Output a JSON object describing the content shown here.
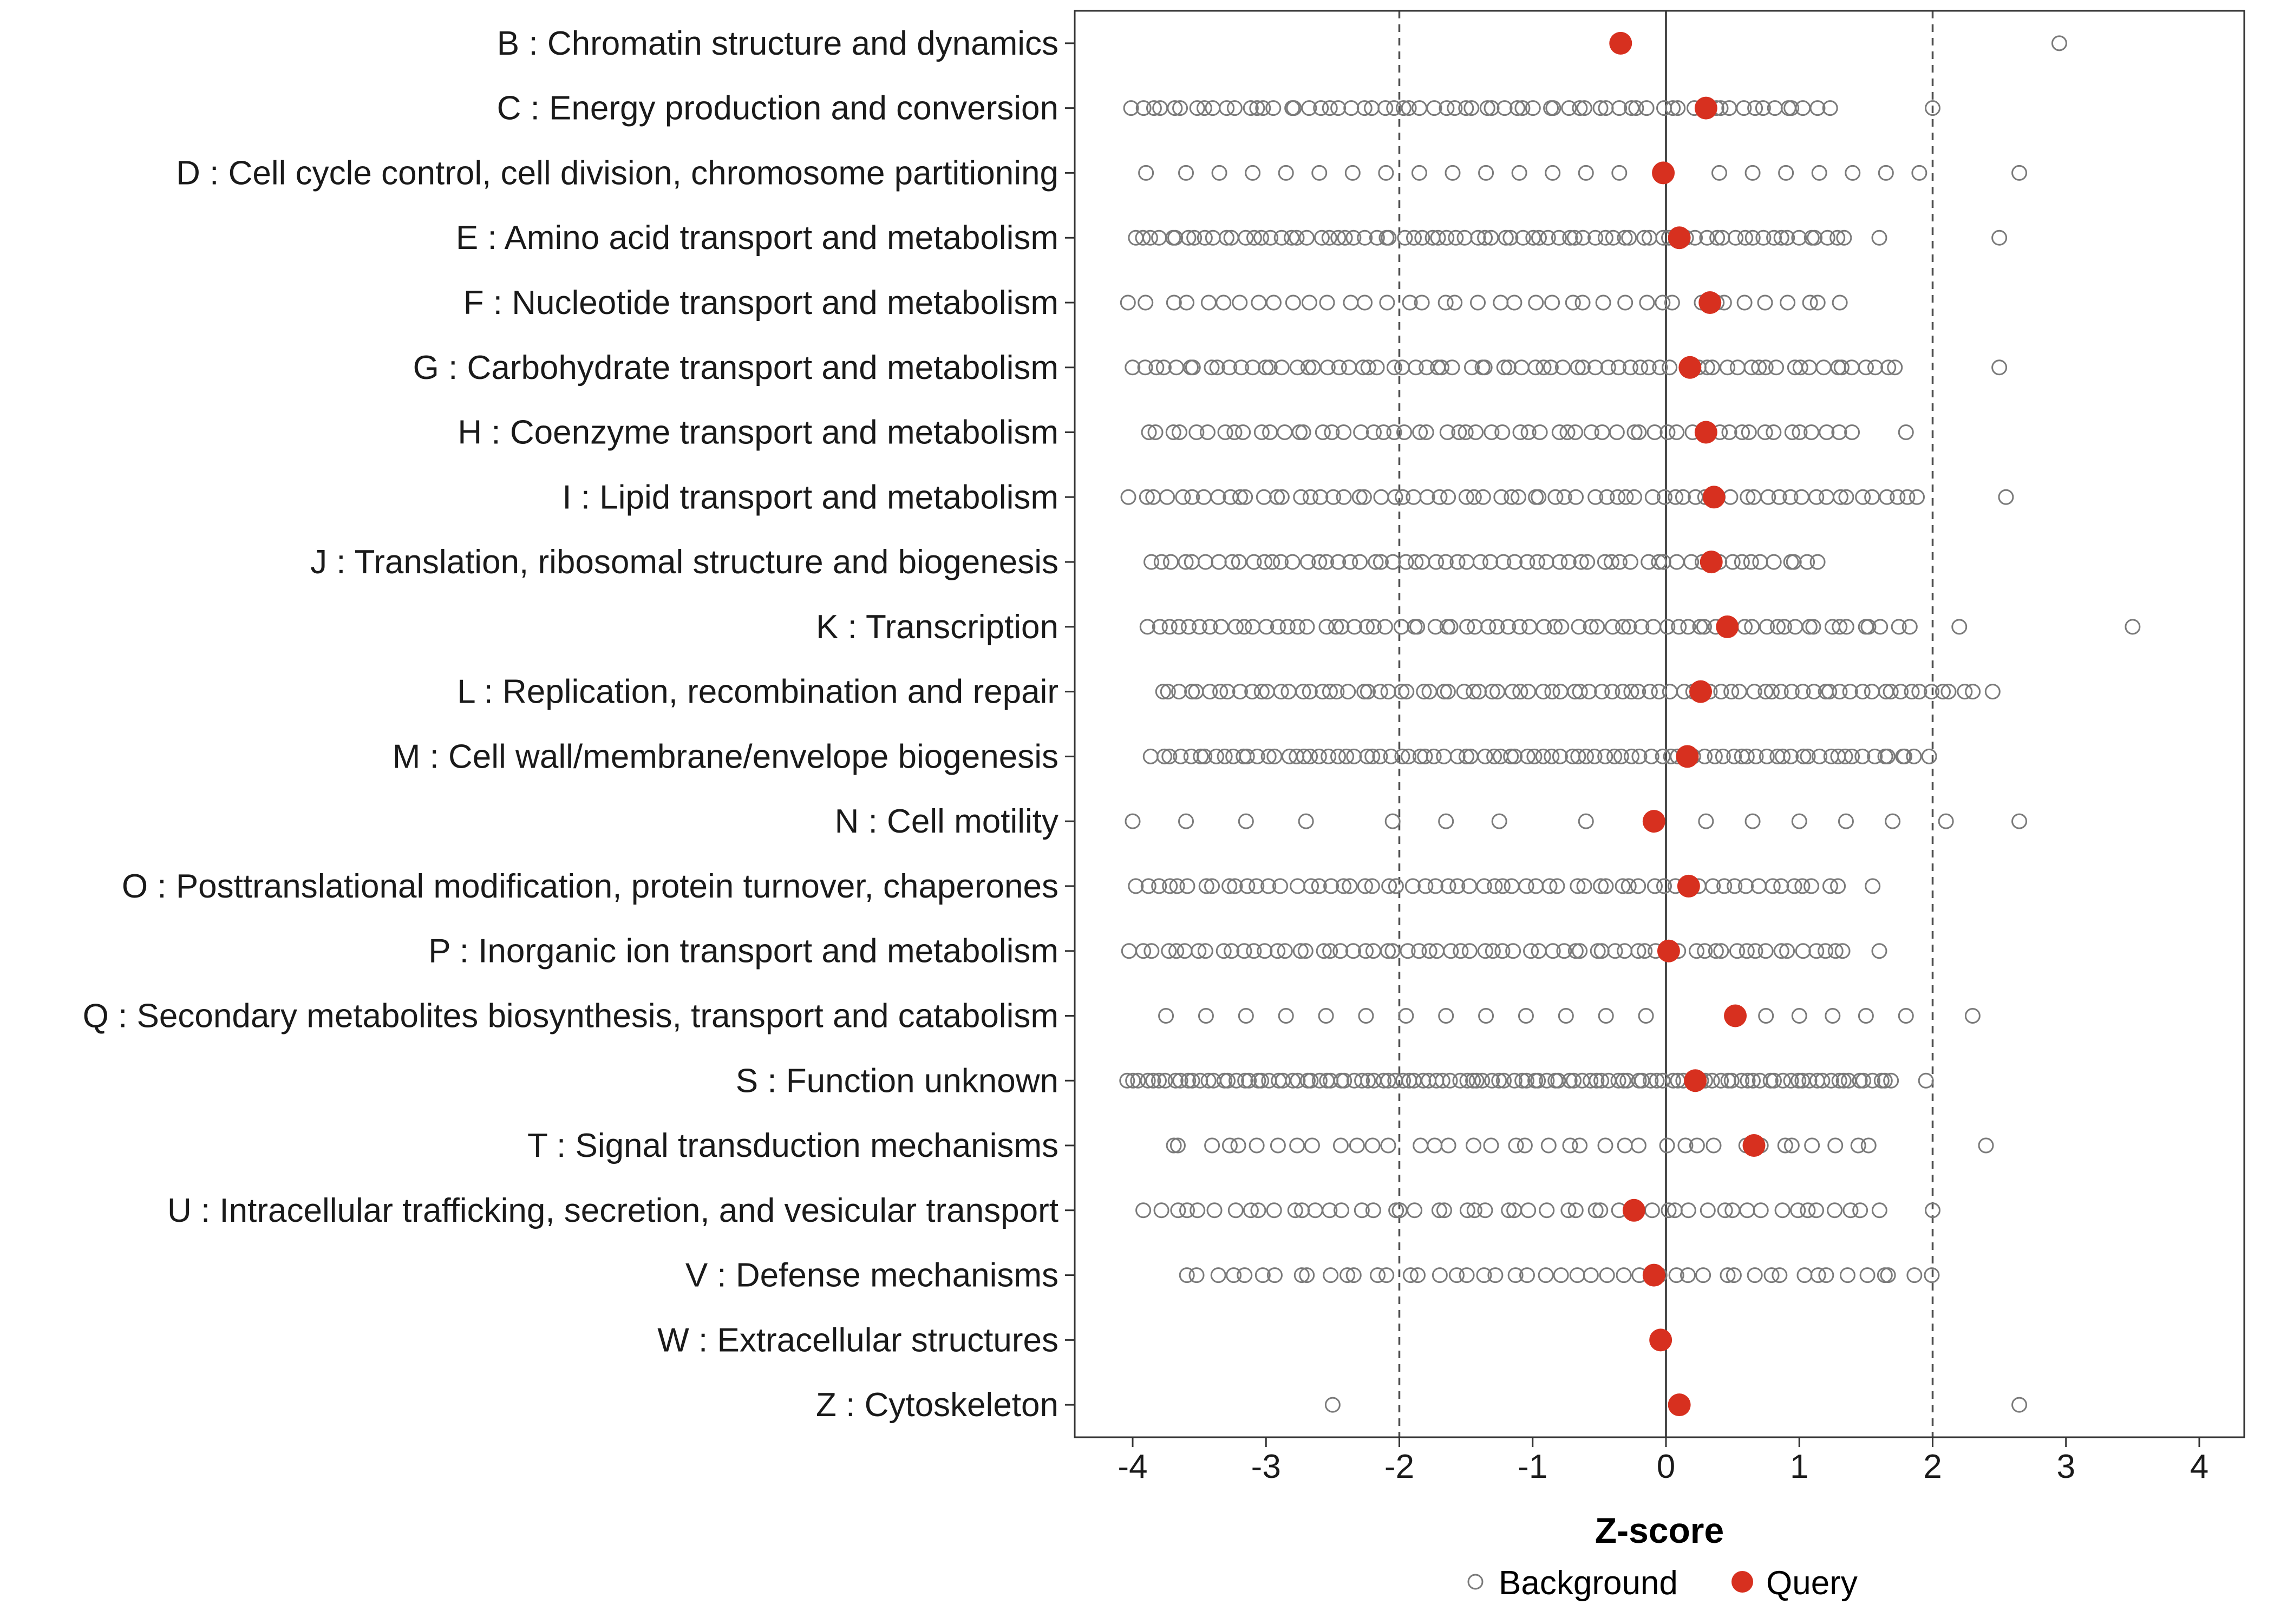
{
  "colors": {
    "query": "#D7301F",
    "background_stroke": "#7a7a7a",
    "dashed_line": "#4d4d4d",
    "zero_line": "#333333",
    "panel_border": "#333333",
    "axis_text": "#1a1a1a"
  },
  "axis": {
    "xlabel": "Z-score",
    "ticks": [
      -4,
      -3,
      -2,
      -1,
      0,
      1,
      2,
      3,
      4
    ]
  },
  "legend": {
    "background_label": "Background",
    "query_label": "Query"
  },
  "chart_data": {
    "type": "scatter",
    "title": "",
    "xlabel": "Z-score",
    "ylabel": "",
    "xlim": [
      -4.45,
      4.35
    ],
    "x_ticks": [
      -4,
      -3,
      -2,
      -1,
      0,
      1,
      2,
      3,
      4
    ],
    "grid": false,
    "legend_position": "bottom",
    "reference_lines": {
      "solid": [
        0
      ],
      "dashed": [
        -2,
        2
      ]
    },
    "series_legend": [
      {
        "name": "Background",
        "marker": "open-circle",
        "color": "#7a7a7a"
      },
      {
        "name": "Query",
        "marker": "filled-circle",
        "color": "#D7301F"
      }
    ],
    "categories": [
      {
        "label": "B : Chromatin structure and dynamics",
        "query": -0.34,
        "background_points": [
          2.95
        ],
        "background_segments": []
      },
      {
        "label": "C : Energy production and conversion",
        "query": 0.3,
        "background_points": [
          2.0
        ],
        "background_segments": [
          [
            -4.0,
            1.2,
            68
          ]
        ]
      },
      {
        "label": "D : Cell cycle control, cell division, chromosome partitioning",
        "query": -0.02,
        "background_points": [
          -3.9,
          -3.6,
          -3.35,
          -3.1,
          -2.85,
          -2.6,
          -2.35,
          -2.1,
          -1.85,
          -1.6,
          -1.35,
          -1.1,
          -0.85,
          -0.6,
          -0.35,
          0.4,
          0.65,
          0.9,
          1.15,
          1.4,
          1.65,
          1.9,
          2.65
        ],
        "background_segments": []
      },
      {
        "label": "E : Amino acid transport and metabolism",
        "query": 0.1,
        "background_points": [
          1.6,
          2.5
        ],
        "background_segments": [
          [
            -4.0,
            1.35,
            78
          ]
        ]
      },
      {
        "label": "F : Nucleotide transport and metabolism",
        "query": 0.33,
        "background_points": [],
        "background_segments": [
          [
            -4.0,
            1.3,
            40
          ]
        ]
      },
      {
        "label": "G : Carbohydrate transport and metabolism",
        "query": 0.18,
        "background_points": [
          2.5
        ],
        "background_segments": [
          [
            -4.0,
            1.75,
            72
          ]
        ]
      },
      {
        "label": "H : Coenzyme transport and metabolism",
        "query": 0.3,
        "background_points": [
          1.8
        ],
        "background_segments": [
          [
            -3.9,
            1.4,
            58
          ]
        ]
      },
      {
        "label": "I : Lipid transport and metabolism",
        "query": 0.36,
        "background_points": [
          2.55
        ],
        "background_segments": [
          [
            -4.0,
            1.9,
            68
          ]
        ]
      },
      {
        "label": "J : Translation, ribosomal structure and biogenesis",
        "query": 0.34,
        "background_points": [],
        "background_segments": [
          [
            -3.85,
            1.15,
            62
          ]
        ]
      },
      {
        "label": "K : Transcription",
        "query": 0.46,
        "background_points": [
          2.2,
          3.5
        ],
        "background_segments": [
          [
            -3.9,
            1.8,
            70
          ]
        ]
      },
      {
        "label": "L : Replication, recombination and repair",
        "query": 0.26,
        "background_points": [
          2.45
        ],
        "background_segments": [
          [
            -3.8,
            2.3,
            82
          ]
        ]
      },
      {
        "label": "M : Cell wall/membrane/envelope biogenesis",
        "query": 0.16,
        "background_points": [],
        "background_segments": [
          [
            -3.85,
            1.95,
            88
          ]
        ]
      },
      {
        "label": "N : Cell motility",
        "query": -0.09,
        "background_points": [
          -4.0,
          -3.6,
          -3.15,
          -2.7,
          -2.05,
          -1.65,
          -1.25,
          -0.6,
          0.3,
          0.65,
          1.0,
          1.35,
          1.7,
          2.1,
          2.65
        ],
        "background_segments": []
      },
      {
        "label": "O : Posttranslational modification, protein turnover, chaperones",
        "query": 0.17,
        "background_points": [
          1.55
        ],
        "background_segments": [
          [
            -4.0,
            1.3,
            62
          ]
        ]
      },
      {
        "label": "P : Inorganic ion transport and metabolism",
        "query": 0.02,
        "background_points": [
          1.6
        ],
        "background_segments": [
          [
            -4.0,
            1.35,
            66
          ]
        ]
      },
      {
        "label": "Q : Secondary metabolites biosynthesis, transport and catabolism",
        "query": 0.52,
        "background_points": [
          -3.75,
          -3.45,
          -3.15,
          -2.85,
          -2.55,
          -2.25,
          -1.95,
          -1.65,
          -1.35,
          -1.05,
          -0.75,
          -0.45,
          -0.15,
          0.75,
          1.0,
          1.25,
          1.5,
          1.8,
          2.3
        ],
        "background_segments": []
      },
      {
        "label": "S : Function unknown",
        "query": 0.22,
        "background_points": [
          1.95
        ],
        "background_segments": [
          [
            -4.05,
            1.7,
            112
          ]
        ]
      },
      {
        "label": "T : Signal transduction mechanisms",
        "query": 0.66,
        "background_points": [
          2.4
        ],
        "background_segments": [
          [
            -3.75,
            1.55,
            38
          ]
        ]
      },
      {
        "label": "U : Intracellular trafficking, secretion, and vesicular transport",
        "query": -0.24,
        "background_points": [
          2.0
        ],
        "background_segments": [
          [
            -3.9,
            1.6,
            52
          ]
        ]
      },
      {
        "label": "V : Defense mechanisms",
        "query": -0.09,
        "background_points": [],
        "background_segments": [
          [
            -3.6,
            1.95,
            48
          ]
        ]
      },
      {
        "label": "W : Extracellular structures",
        "query": -0.04,
        "background_points": [],
        "background_segments": []
      },
      {
        "label": "Z : Cytoskeleton",
        "query": 0.1,
        "background_points": [
          -2.5,
          2.65
        ],
        "background_segments": []
      }
    ]
  }
}
